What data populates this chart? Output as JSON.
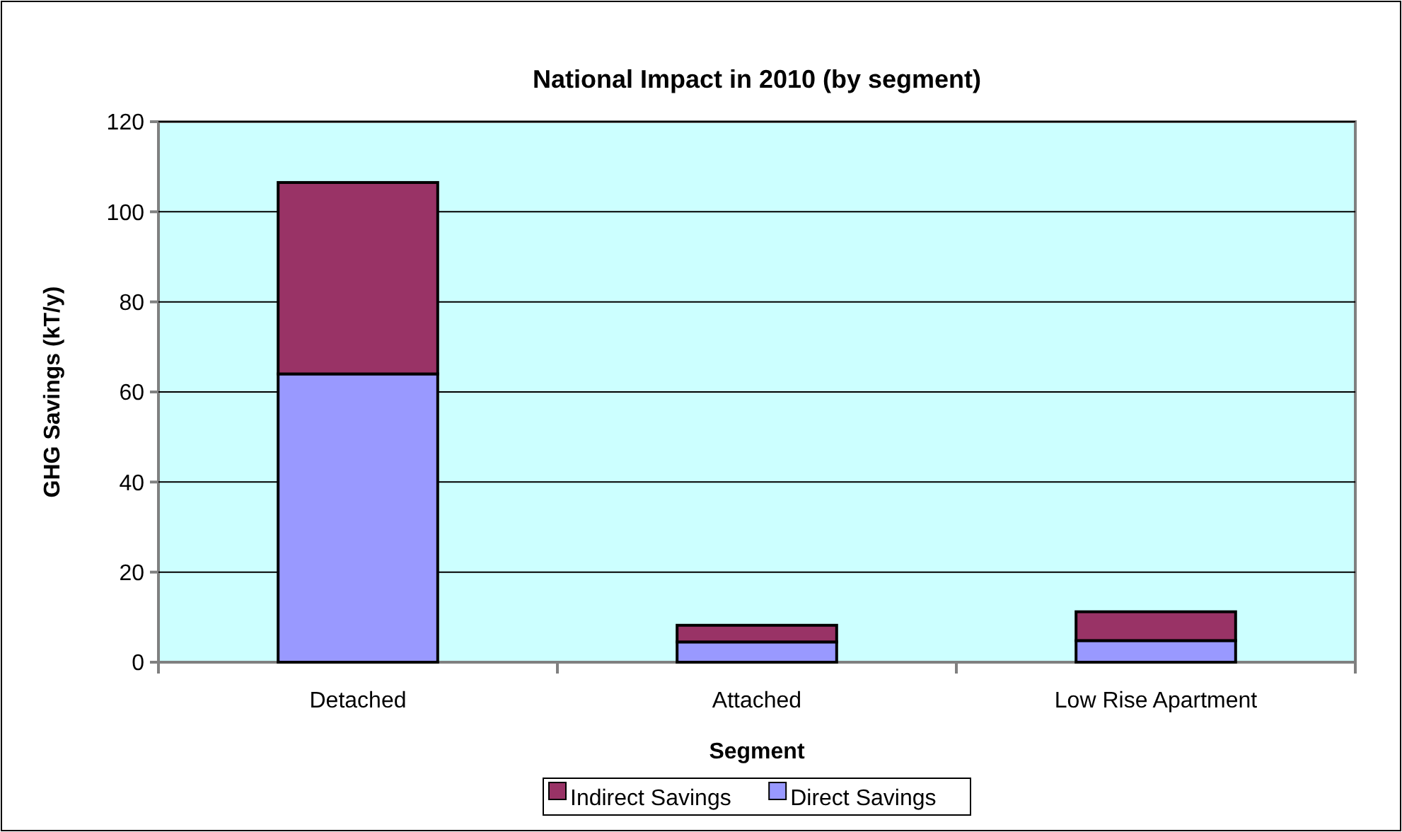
{
  "chart_data": {
    "type": "bar",
    "title": "National Impact in 2010 (by segment)",
    "xlabel": "Segment",
    "ylabel": "GHG Savings (kT/y)",
    "categories": [
      "Detached",
      "Attached",
      "Low Rise Apartment"
    ],
    "series": [
      {
        "name": "Direct Savings",
        "color": "#9999ff",
        "values": [
          64,
          4.5,
          4.8
        ]
      },
      {
        "name": "Indirect Savings",
        "color": "#993366",
        "values": [
          42.5,
          3.7,
          6.4
        ]
      }
    ],
    "stacked": true,
    "ylim": [
      0,
      120
    ],
    "yticks": [
      0,
      20,
      40,
      60,
      80,
      100,
      120
    ],
    "grid": "y",
    "legend": "bottom"
  }
}
